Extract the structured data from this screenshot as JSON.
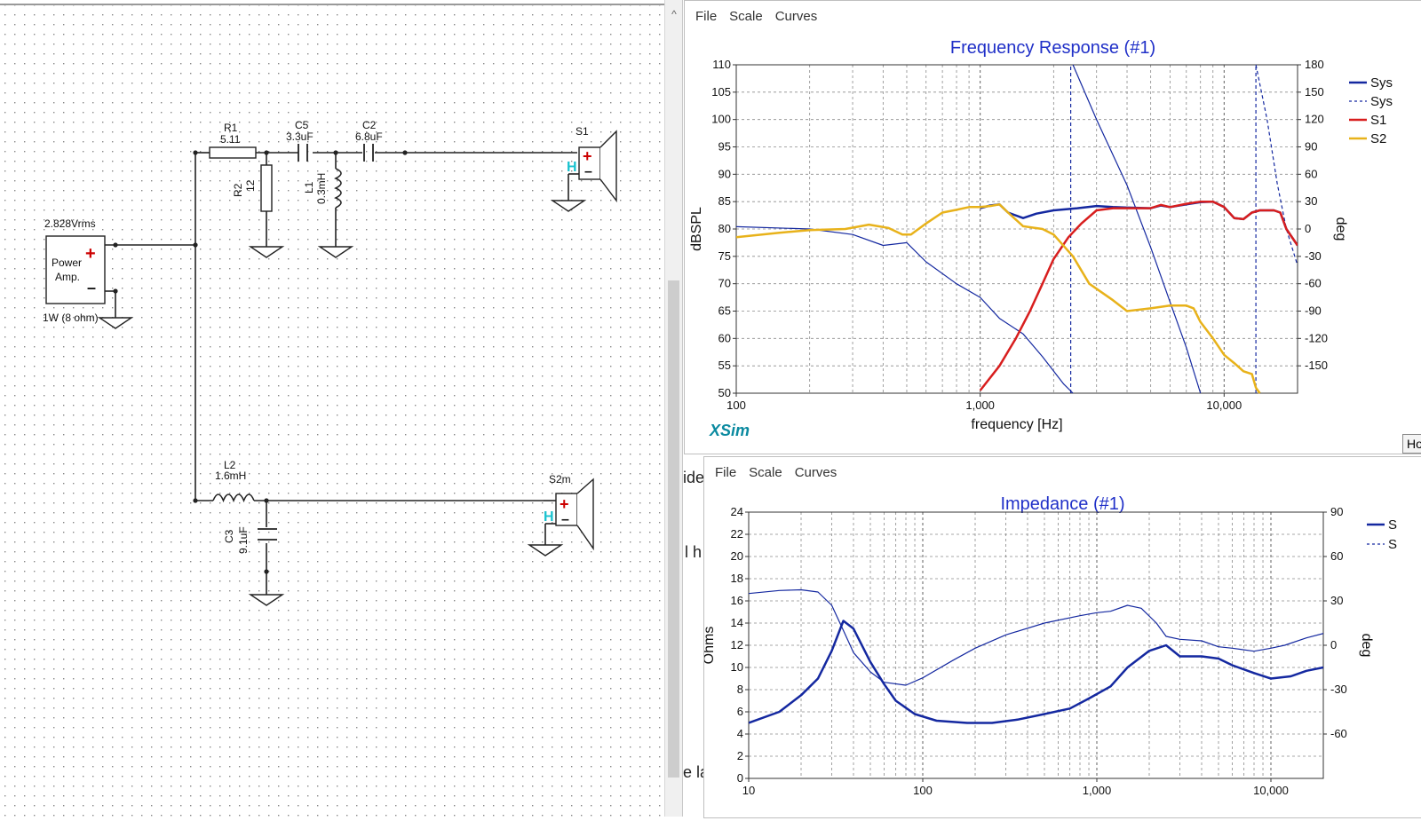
{
  "schematic": {
    "components": {
      "r1": {
        "name": "R1",
        "value": "5.11"
      },
      "c5": {
        "name": "C5",
        "value": "3.3uF"
      },
      "c2": {
        "name": "C2",
        "value": "6.8uF"
      },
      "r2": {
        "name": "R2",
        "value": "12"
      },
      "l1": {
        "name": "L1",
        "value": "0.3mH"
      },
      "s1": {
        "name": "S1"
      },
      "l2": {
        "name": "L2",
        "value": "1.6mH"
      },
      "c3": {
        "name": "C3",
        "value": "9.1uF"
      },
      "s2": {
        "name": "S2m"
      },
      "amp": {
        "label_line1": "Power",
        "label_line2": "Amp.",
        "voltage": "2.828Vrms",
        "power": "1W (8 ohm)"
      }
    },
    "speaker_marker": "H",
    "plus": "+",
    "minus": "–"
  },
  "behind_text": [
    "ide",
    "l h",
    "e la"
  ],
  "scroll_up_glyph": "^",
  "fr_window": {
    "menu": [
      "File",
      "Scale",
      "Curves"
    ],
    "title": "Frequency Response (#1)",
    "ylabel": "dBSPL",
    "y2label": "deg",
    "xlabel": "frequency [Hz]",
    "brand": "XSim",
    "button_label": "Ho",
    "legend": [
      {
        "name": "Sys",
        "style": "solid",
        "color": "#1428a0"
      },
      {
        "name": "Sys",
        "style": "dashed",
        "color": "#1428a0"
      },
      {
        "name": "S1",
        "style": "solid",
        "color": "#d81e1e"
      },
      {
        "name": "S2",
        "style": "solid",
        "color": "#e8b21a"
      }
    ]
  },
  "imp_window": {
    "menu": [
      "File",
      "Scale",
      "Curves"
    ],
    "title": "Impedance (#1)",
    "ylabel": "Ohms",
    "y2label": "deg",
    "legend": [
      {
        "name": "S",
        "style": "solid",
        "color": "#1428a0"
      },
      {
        "name": "S",
        "style": "dashed",
        "color": "#1428a0"
      }
    ]
  },
  "chart_data": [
    {
      "type": "line",
      "title": "Frequency Response (#1)",
      "xlabel": "frequency [Hz]",
      "ylabel": "dBSPL",
      "y2label": "deg",
      "xscale": "log",
      "xlim": [
        100,
        20000
      ],
      "ylim": [
        50,
        110
      ],
      "y2lim": [
        -180,
        180
      ],
      "x_ticks": [
        {
          "v": 100,
          "label": "100"
        },
        {
          "v": 1000,
          "label": "1,000"
        },
        {
          "v": 10000,
          "label": "10,000"
        }
      ],
      "y_ticks": [
        50,
        55,
        60,
        65,
        70,
        75,
        80,
        85,
        90,
        95,
        100,
        105,
        110
      ],
      "y2_ticks": [
        180,
        150,
        120,
        90,
        60,
        30,
        0,
        -30,
        -60,
        -90,
        -120,
        -150
      ],
      "grid": true,
      "legend_position": "right",
      "series": [
        {
          "name": "Sys",
          "axis": "y",
          "style": "solid",
          "color": "#1428a0",
          "width": 2.5,
          "points": [
            [
              1000,
              83.8
            ],
            [
              1100,
              84.3
            ],
            [
              1200,
              84.5
            ],
            [
              1300,
              83.0
            ],
            [
              1500,
              82.0
            ],
            [
              1700,
              82.8
            ],
            [
              2000,
              83.4
            ],
            [
              2500,
              83.8
            ],
            [
              3000,
              84.2
            ],
            [
              3500,
              84.0
            ],
            [
              4000,
              83.9
            ],
            [
              5000,
              83.8
            ],
            [
              5500,
              84.3
            ],
            [
              6000,
              84.0
            ],
            [
              7000,
              84.5
            ],
            [
              8000,
              84.9
            ],
            [
              9000,
              85.0
            ],
            [
              10000,
              84.0
            ],
            [
              11000,
              82.0
            ],
            [
              12000,
              81.8
            ],
            [
              13000,
              83.0
            ],
            [
              14000,
              83.4
            ],
            [
              16000,
              83.4
            ],
            [
              17000,
              83.0
            ],
            [
              18000,
              80.0
            ],
            [
              20000,
              77.0
            ]
          ]
        },
        {
          "name": "Sys",
          "axis": "y2",
          "style": "thin",
          "color": "#1428a0",
          "width": 1.2,
          "points": [
            [
              100,
              2.5
            ],
            [
              200,
              0
            ],
            [
              300,
              -6
            ],
            [
              400,
              -18
            ],
            [
              500,
              -15
            ],
            [
              600,
              -36
            ],
            [
              800,
              -60
            ],
            [
              1000,
              -75
            ],
            [
              1200,
              -98
            ],
            [
              1500,
              -115
            ],
            [
              1800,
              -140
            ],
            [
              2200,
              -170
            ],
            [
              2400,
              -180
            ]
          ]
        },
        {
          "name": "Sys",
          "axis": "y2",
          "style": "thin",
          "color": "#1428a0",
          "width": 1.2,
          "points": [
            [
              2400,
              180
            ],
            [
              3000,
              120
            ],
            [
              4000,
              48
            ],
            [
              5000,
              -20
            ],
            [
              6000,
              -80
            ],
            [
              7000,
              -130
            ],
            [
              8000,
              -180
            ]
          ]
        },
        {
          "name": "Sys",
          "axis": "y",
          "style": "dashed",
          "color": "#1428a0",
          "width": 1.2,
          "points": [
            [
              2350,
              50
            ],
            [
              2350,
              110
            ]
          ]
        },
        {
          "name": "Sys",
          "axis": "y",
          "style": "dashed",
          "color": "#1428a0",
          "width": 1.2,
          "points": [
            [
              13500,
              50
            ],
            [
              13500,
              110
            ]
          ]
        },
        {
          "name": "Sys",
          "axis": "y2",
          "style": "dashed",
          "color": "#1428a0",
          "width": 1.2,
          "points": [
            [
              13500,
              180
            ],
            [
              15000,
              120
            ],
            [
              16500,
              50
            ],
            [
              18000,
              0
            ],
            [
              20000,
              -40
            ]
          ]
        },
        {
          "name": "S1",
          "axis": "y",
          "style": "solid",
          "color": "#d81e1e",
          "width": 2.5,
          "points": [
            [
              1000,
              50.5
            ],
            [
              1200,
              55
            ],
            [
              1400,
              60
            ],
            [
              1600,
              65
            ],
            [
              1800,
              70
            ],
            [
              2000,
              74.5
            ],
            [
              2300,
              78.5
            ],
            [
              2600,
              81
            ],
            [
              3000,
              83.4
            ],
            [
              3500,
              83.8
            ],
            [
              4000,
              83.8
            ],
            [
              5000,
              83.8
            ],
            [
              5500,
              84.4
            ],
            [
              6000,
              84.0
            ],
            [
              7000,
              84.6
            ],
            [
              8000,
              85.0
            ],
            [
              9000,
              85.0
            ],
            [
              10000,
              84.0
            ],
            [
              11000,
              82.0
            ],
            [
              12000,
              81.8
            ],
            [
              13000,
              83.0
            ],
            [
              14000,
              83.4
            ],
            [
              16000,
              83.4
            ],
            [
              17000,
              83.0
            ],
            [
              18000,
              80.0
            ],
            [
              20000,
              77.0
            ]
          ]
        },
        {
          "name": "S2",
          "axis": "y",
          "style": "solid",
          "color": "#e8b21a",
          "width": 2.5,
          "points": [
            [
              100,
              78.5
            ],
            [
              150,
              79.3
            ],
            [
              200,
              79.8
            ],
            [
              280,
              80.0
            ],
            [
              350,
              80.8
            ],
            [
              420,
              80.2
            ],
            [
              480,
              79.0
            ],
            [
              520,
              79.0
            ],
            [
              600,
              81.0
            ],
            [
              700,
              83.0
            ],
            [
              800,
              83.5
            ],
            [
              900,
              84.0
            ],
            [
              1000,
              84.0
            ],
            [
              1100,
              84.2
            ],
            [
              1200,
              84.5
            ],
            [
              1300,
              83.0
            ],
            [
              1500,
              80.5
            ],
            [
              1800,
              80.0
            ],
            [
              2000,
              79.0
            ],
            [
              2400,
              75.0
            ],
            [
              2800,
              70.0
            ],
            [
              3500,
              67.0
            ],
            [
              4000,
              65.0
            ],
            [
              5000,
              65.5
            ],
            [
              6000,
              66.0
            ],
            [
              7000,
              66.0
            ],
            [
              7500,
              65.5
            ],
            [
              8000,
              63.0
            ],
            [
              9000,
              60.0
            ],
            [
              10000,
              57.0
            ],
            [
              11000,
              55.5
            ],
            [
              12000,
              54.0
            ],
            [
              13000,
              53.5
            ],
            [
              13500,
              51.0
            ],
            [
              14000,
              50.0
            ]
          ]
        }
      ]
    },
    {
      "type": "line",
      "title": "Impedance (#1)",
      "xlabel": "",
      "ylabel": "Ohms",
      "y2label": "deg",
      "xscale": "log",
      "xlim": [
        10,
        20000
      ],
      "ylim": [
        0,
        24
      ],
      "y2lim": [
        -90,
        90
      ],
      "x_ticks": [
        {
          "v": 10,
          "label": "10"
        },
        {
          "v": 100,
          "label": "100"
        },
        {
          "v": 1000,
          "label": "1,000"
        },
        {
          "v": 10000,
          "label": "10,000"
        }
      ],
      "y_ticks": [
        0,
        2,
        4,
        6,
        8,
        10,
        12,
        14,
        16,
        18,
        20,
        22,
        24
      ],
      "y2_ticks": [
        90,
        60,
        30,
        0,
        -30,
        -60
      ],
      "grid": true,
      "legend_position": "right",
      "series": [
        {
          "name": "S",
          "axis": "y",
          "style": "solid",
          "color": "#1428a0",
          "width": 2.5,
          "points": [
            [
              10,
              5.0
            ],
            [
              15,
              6.0
            ],
            [
              20,
              7.5
            ],
            [
              25,
              9.0
            ],
            [
              30,
              11.5
            ],
            [
              35,
              14.2
            ],
            [
              40,
              13.5
            ],
            [
              50,
              10.5
            ],
            [
              60,
              8.5
            ],
            [
              70,
              7.0
            ],
            [
              90,
              5.8
            ],
            [
              120,
              5.2
            ],
            [
              180,
              5.0
            ],
            [
              250,
              5.0
            ],
            [
              350,
              5.3
            ],
            [
              500,
              5.8
            ],
            [
              700,
              6.3
            ],
            [
              900,
              7.2
            ],
            [
              1200,
              8.3
            ],
            [
              1500,
              10.0
            ],
            [
              2000,
              11.5
            ],
            [
              2500,
              12.0
            ],
            [
              3000,
              11.0
            ],
            [
              4000,
              11.0
            ],
            [
              5000,
              10.8
            ],
            [
              6000,
              10.2
            ],
            [
              8000,
              9.5
            ],
            [
              10000,
              9.0
            ],
            [
              13000,
              9.2
            ],
            [
              16000,
              9.7
            ],
            [
              20000,
              10.0
            ]
          ]
        },
        {
          "name": "S",
          "axis": "y2",
          "style": "thin",
          "color": "#1428a0",
          "width": 1.2,
          "points": [
            [
              10,
              35
            ],
            [
              15,
              37
            ],
            [
              20,
              37.5
            ],
            [
              25,
              36
            ],
            [
              30,
              27
            ],
            [
              35,
              10
            ],
            [
              40,
              -5
            ],
            [
              50,
              -18
            ],
            [
              60,
              -25
            ],
            [
              80,
              -27
            ],
            [
              100,
              -22
            ],
            [
              150,
              -10
            ],
            [
              200,
              -2
            ],
            [
              300,
              7
            ],
            [
              500,
              15
            ],
            [
              800,
              20
            ],
            [
              1000,
              22
            ],
            [
              1200,
              23
            ],
            [
              1500,
              27
            ],
            [
              1800,
              25
            ],
            [
              2200,
              15
            ],
            [
              2500,
              6
            ],
            [
              3000,
              4
            ],
            [
              4000,
              3
            ],
            [
              5000,
              -1
            ],
            [
              6000,
              -2
            ],
            [
              8000,
              -4
            ],
            [
              10000,
              -2
            ],
            [
              12000,
              0
            ],
            [
              16000,
              5
            ],
            [
              20000,
              8
            ]
          ]
        }
      ]
    }
  ]
}
